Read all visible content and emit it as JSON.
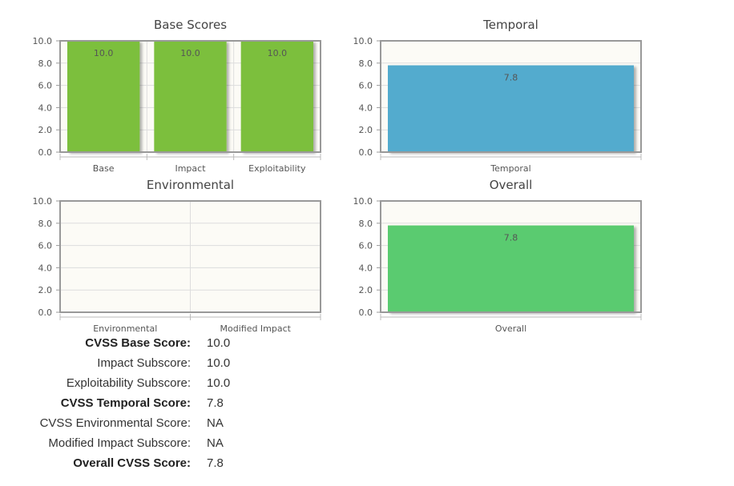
{
  "colors": {
    "base": "#7bbf3d",
    "temporal": "#52abce",
    "overall": "#5acb6f",
    "plot_bg": "#fcfbf6",
    "grid": "#dddddd",
    "axis": "#999999"
  },
  "chart_data": [
    {
      "type": "bar",
      "title": "Base Scores",
      "categories": [
        "Base",
        "Impact",
        "Exploitability"
      ],
      "values": [
        10.0,
        10.0,
        10.0
      ],
      "value_labels": [
        "10.0",
        "10.0",
        "10.0"
      ],
      "ylim": [
        0,
        10
      ],
      "yticks": [
        "0.0",
        "2.0",
        "4.0",
        "6.0",
        "8.0",
        "10.0"
      ],
      "color": "#7bbf3d"
    },
    {
      "type": "bar",
      "title": "Temporal",
      "categories": [
        "Temporal"
      ],
      "values": [
        7.8
      ],
      "value_labels": [
        "7.8"
      ],
      "ylim": [
        0,
        10
      ],
      "yticks": [
        "0.0",
        "2.0",
        "4.0",
        "6.0",
        "8.0",
        "10.0"
      ],
      "color": "#52abce"
    },
    {
      "type": "bar",
      "title": "Environmental",
      "categories": [
        "Environmental",
        "Modified Impact"
      ],
      "values": [
        null,
        null
      ],
      "value_labels": [
        "",
        ""
      ],
      "ylim": [
        0,
        10
      ],
      "yticks": [
        "0.0",
        "2.0",
        "4.0",
        "6.0",
        "8.0",
        "10.0"
      ],
      "color": "#7bbf3d"
    },
    {
      "type": "bar",
      "title": "Overall",
      "categories": [
        "Overall"
      ],
      "values": [
        7.8
      ],
      "value_labels": [
        "7.8"
      ],
      "ylim": [
        0,
        10
      ],
      "yticks": [
        "0.0",
        "2.0",
        "4.0",
        "6.0",
        "8.0",
        "10.0"
      ],
      "color": "#5acb6f"
    }
  ],
  "scores": [
    {
      "label": "CVSS Base Score:",
      "value": "10.0",
      "bold": true
    },
    {
      "label": "Impact Subscore:",
      "value": "10.0",
      "bold": false
    },
    {
      "label": "Exploitability Subscore:",
      "value": "10.0",
      "bold": false
    },
    {
      "label": "CVSS Temporal Score:",
      "value": "7.8",
      "bold": true
    },
    {
      "label": "CVSS Environmental Score:",
      "value": "NA",
      "bold": false
    },
    {
      "label": "Modified Impact Subscore:",
      "value": "NA",
      "bold": false
    },
    {
      "label": "Overall CVSS Score:",
      "value": "7.8",
      "bold": true
    }
  ]
}
